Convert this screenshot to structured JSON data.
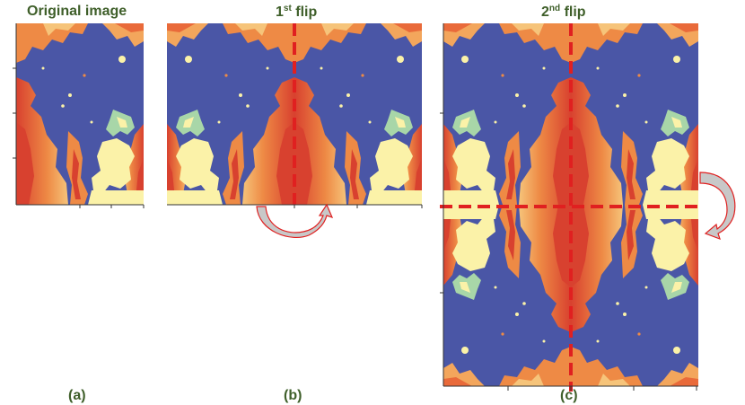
{
  "panels": [
    {
      "id": "a",
      "title": "Original image",
      "caption": "(a)"
    },
    {
      "id": "b",
      "title_main": "1",
      "title_sup": "st",
      "title_rest": " flip",
      "caption": "(b)"
    },
    {
      "id": "c",
      "title_main": "2",
      "title_sup": "nd",
      "title_rest": " flip",
      "caption": "(c)"
    }
  ],
  "colors": {
    "background_blue": "#4a56a6",
    "fire_red": "#d8412f",
    "fire_orange": "#ee8a45",
    "fire_light": "#f6c47a",
    "pale_yellow": "#fbf2a8",
    "green_tint": "#a8d6a8",
    "flip_line": "#e02020",
    "arrow_fill": "#c8c8c8"
  }
}
